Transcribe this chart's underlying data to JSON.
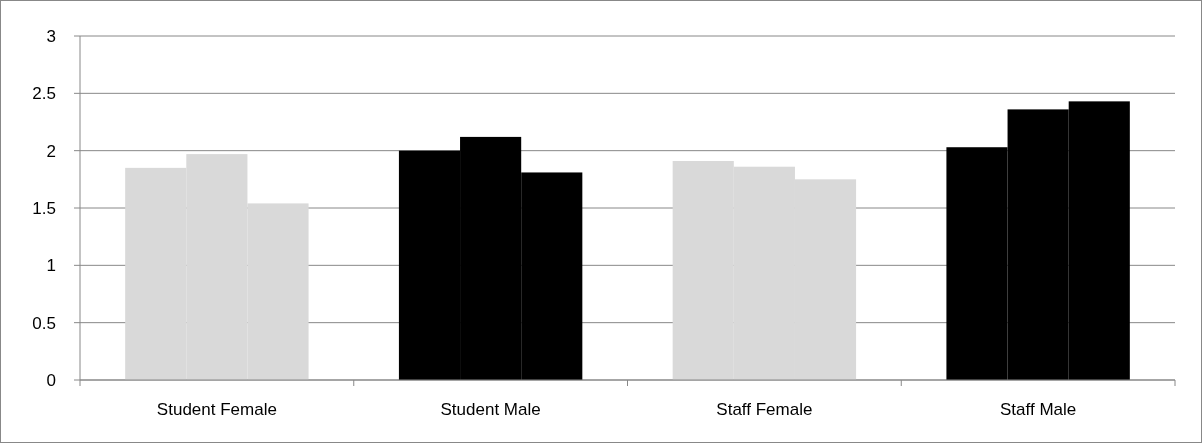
{
  "chart_data": {
    "type": "bar",
    "categories": [
      "Student Female",
      "Student Male",
      "Staff Female",
      "Staff Male"
    ],
    "series": [
      {
        "colors": [
          "#d9d9d9",
          "#000000",
          "#d9d9d9",
          "#000000"
        ],
        "values": [
          1.85,
          2.0,
          1.91,
          2.03
        ]
      },
      {
        "colors": [
          "#d9d9d9",
          "#000000",
          "#d9d9d9",
          "#000000"
        ],
        "values": [
          1.97,
          2.12,
          1.86,
          2.36
        ]
      },
      {
        "colors": [
          "#d9d9d9",
          "#000000",
          "#d9d9d9",
          "#000000"
        ],
        "values": [
          1.54,
          1.81,
          1.75,
          2.43
        ]
      }
    ],
    "ylim": [
      0,
      3
    ],
    "yticks": [
      0,
      0.5,
      1,
      1.5,
      2,
      2.5,
      3
    ],
    "grid": "y"
  }
}
